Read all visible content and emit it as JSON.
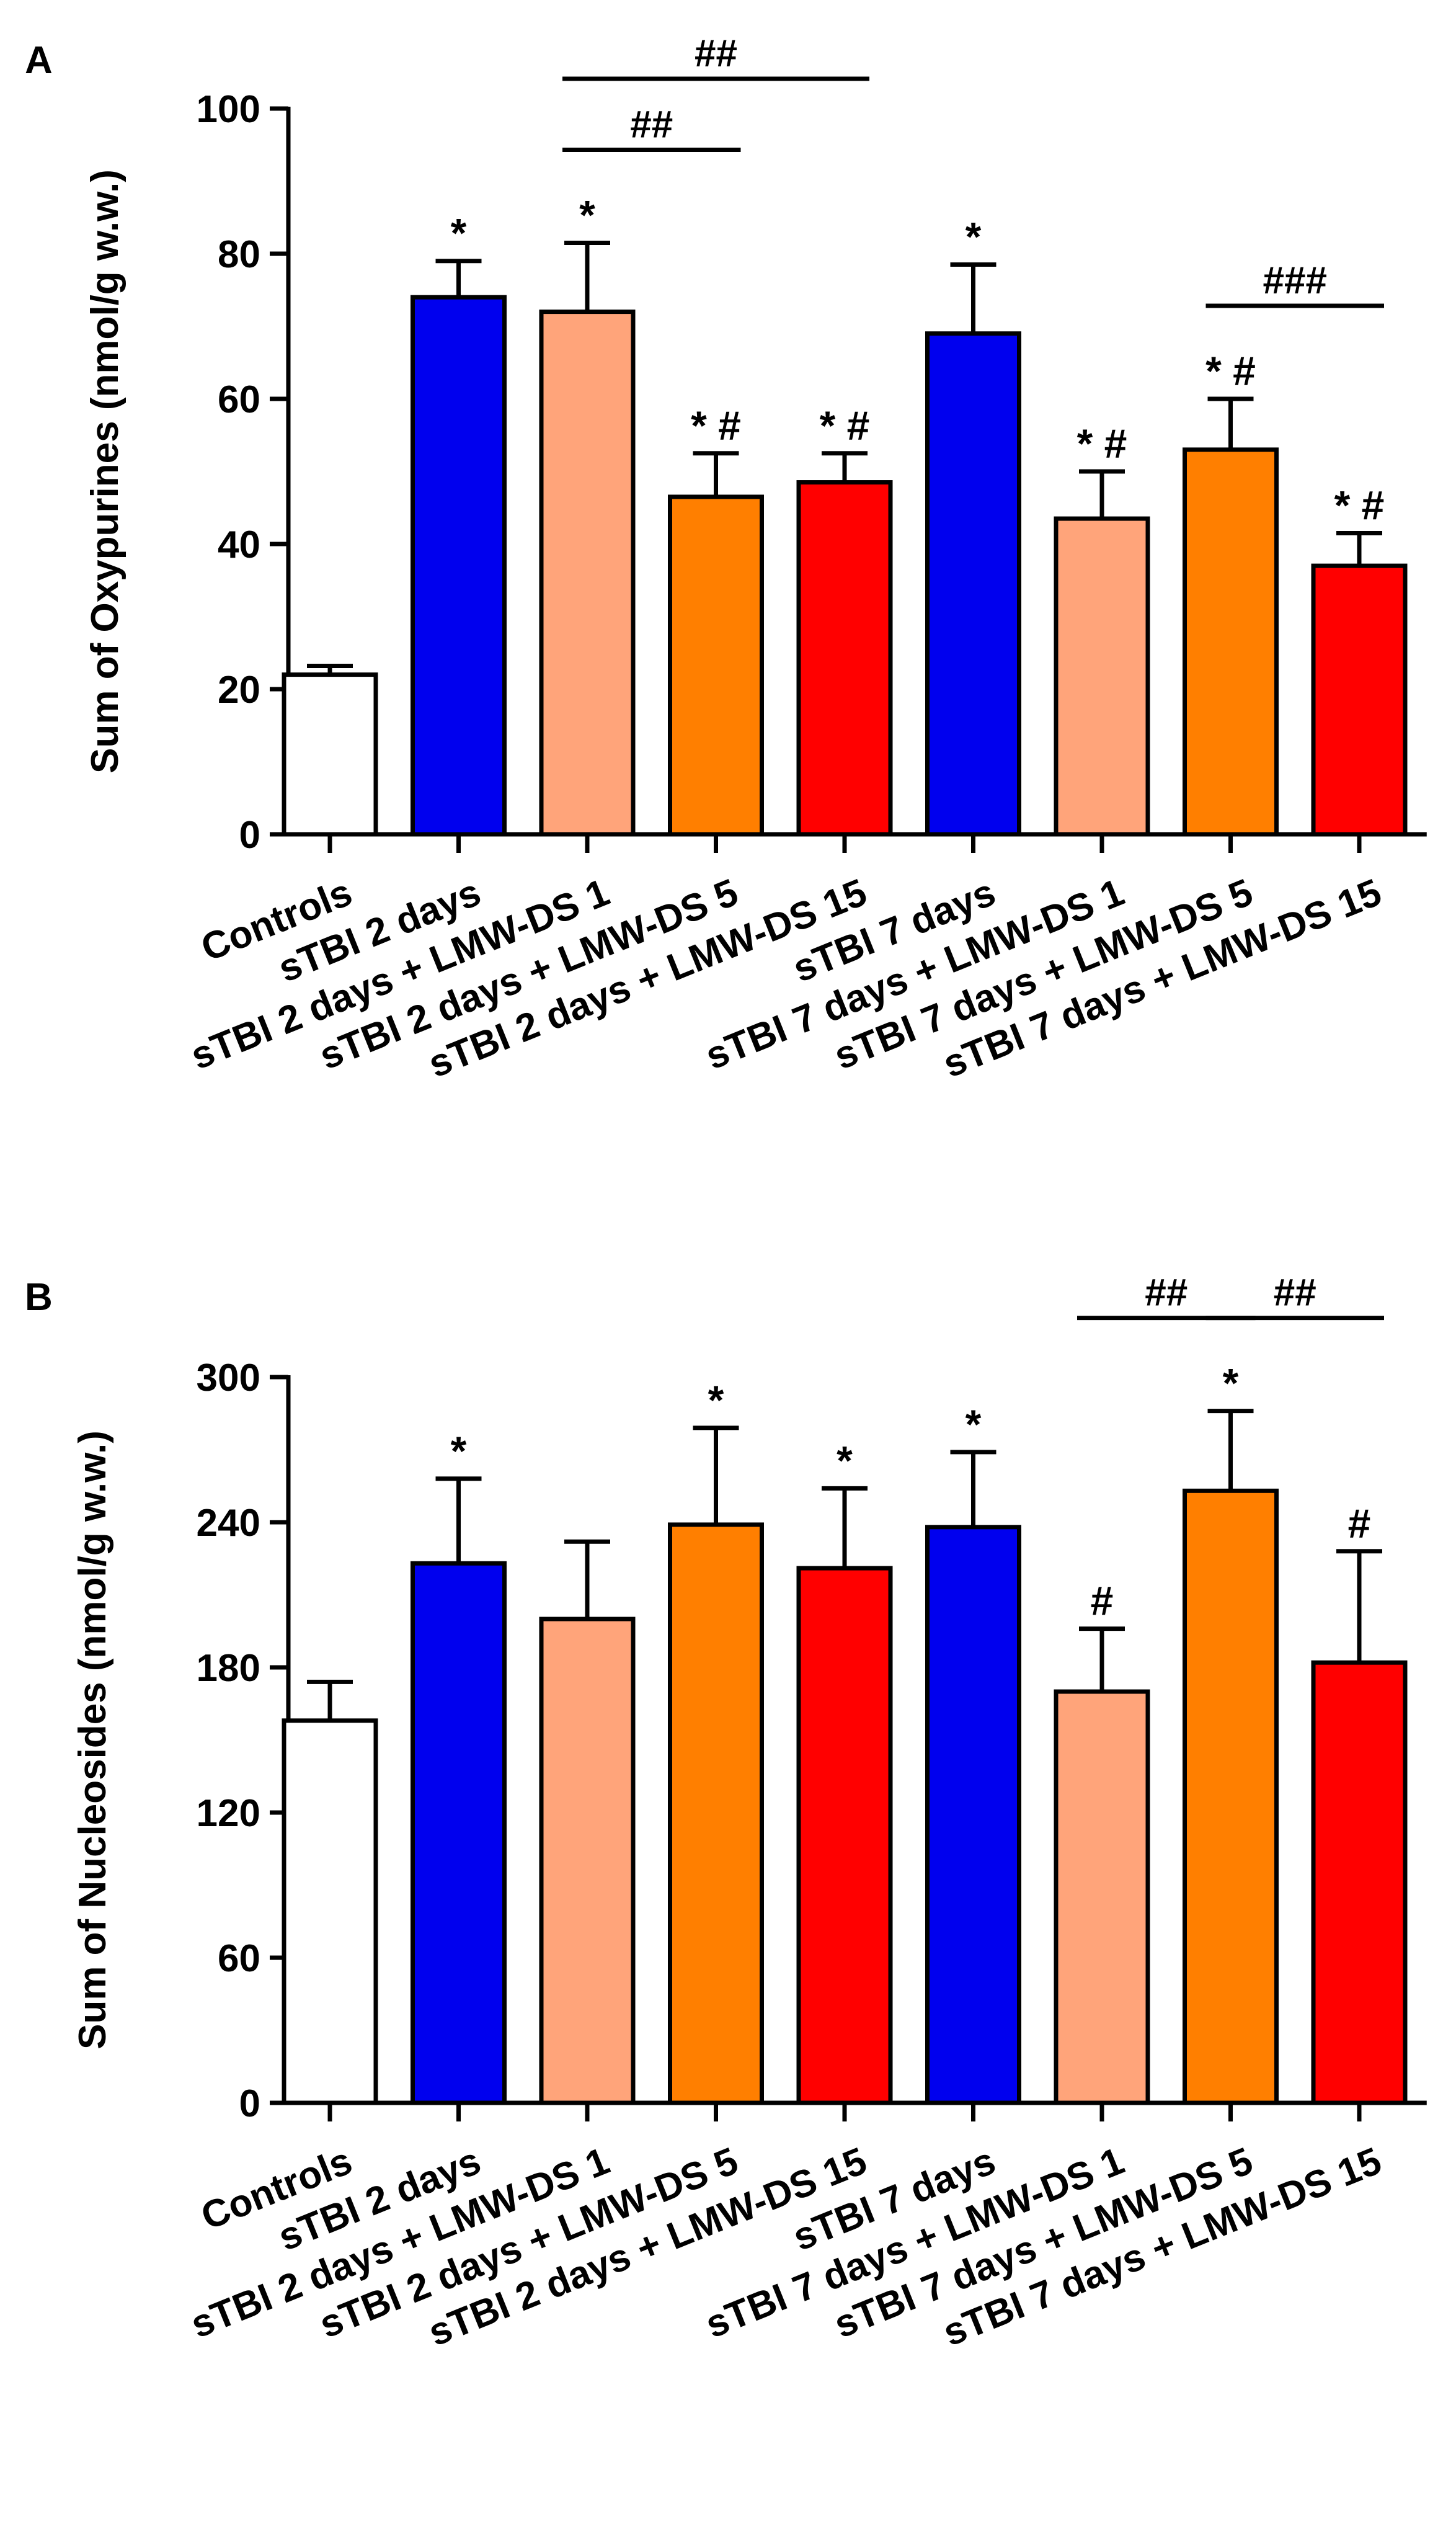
{
  "chart_data": [
    {
      "panel_label": "A",
      "type": "bar",
      "ylabel": "Sum of Oxypurines (nmol/g w.w.)",
      "ylim": [
        0,
        100
      ],
      "yticks": [
        0,
        20,
        40,
        60,
        80,
        100
      ],
      "categories": [
        "Controls",
        "sTBI 2 days",
        "sTBI 2 days + LMW-DS 1",
        "sTBI 2 days + LMW-DS 5",
        "sTBI 2 days + LMW-DS 15",
        "sTBI 7 days",
        "sTBI 7 days + LMW-DS 1",
        "sTBI 7 days + LMW-DS 5",
        "sTBI 7 days + LMW-DS 15"
      ],
      "values": [
        22,
        74,
        72,
        46.5,
        48.5,
        69,
        43.5,
        53,
        37
      ],
      "errors": [
        1.2,
        5,
        9.5,
        6,
        4,
        9.5,
        6.5,
        7,
        4.5
      ],
      "colors": [
        "#ffffff",
        "#0000ee",
        "#ffa47a",
        "#ff7f00",
        "#ff0000",
        "#0000ee",
        "#ffa47a",
        "#ff7f00",
        "#ff0000"
      ],
      "annotations": [
        "",
        "*",
        "*",
        "* #",
        "* #",
        "*",
        "* #",
        "* #",
        "* #"
      ],
      "brackets": [
        {
          "from": 2,
          "to": 4,
          "label": "##"
        },
        {
          "from": 2,
          "to": 3,
          "label": "##"
        },
        {
          "from": 7,
          "to": 8,
          "label": "###"
        }
      ]
    },
    {
      "panel_label": "B",
      "type": "bar",
      "ylabel": "Sum of Nucleosides (nmol/g w.w.)",
      "ylim": [
        0,
        300
      ],
      "yticks": [
        0,
        60,
        120,
        180,
        240,
        300
      ],
      "categories": [
        "Controls",
        "sTBI 2 days",
        "sTBI 2 days + LMW-DS 1",
        "sTBI 2 days + LMW-DS 5",
        "sTBI 2 days + LMW-DS 15",
        "sTBI 7 days",
        "sTBI 7 days + LMW-DS 1",
        "sTBI 7 days + LMW-DS 5",
        "sTBI 7 days + LMW-DS 15"
      ],
      "values": [
        158,
        223,
        200,
        239,
        221,
        238,
        170,
        253,
        182
      ],
      "errors": [
        16,
        35,
        32,
        40,
        33,
        31,
        26,
        33,
        46
      ],
      "colors": [
        "#ffffff",
        "#0000ee",
        "#ffa47a",
        "#ff7f00",
        "#ff0000",
        "#0000ee",
        "#ffa47a",
        "#ff7f00",
        "#ff0000"
      ],
      "annotations": [
        "",
        "*",
        "",
        "*",
        "*",
        "*",
        "#",
        "*",
        "#"
      ],
      "brackets": [
        {
          "from": 6,
          "to": 7,
          "label": "##"
        },
        {
          "from": 7,
          "to": 8,
          "label": "##"
        }
      ]
    }
  ]
}
